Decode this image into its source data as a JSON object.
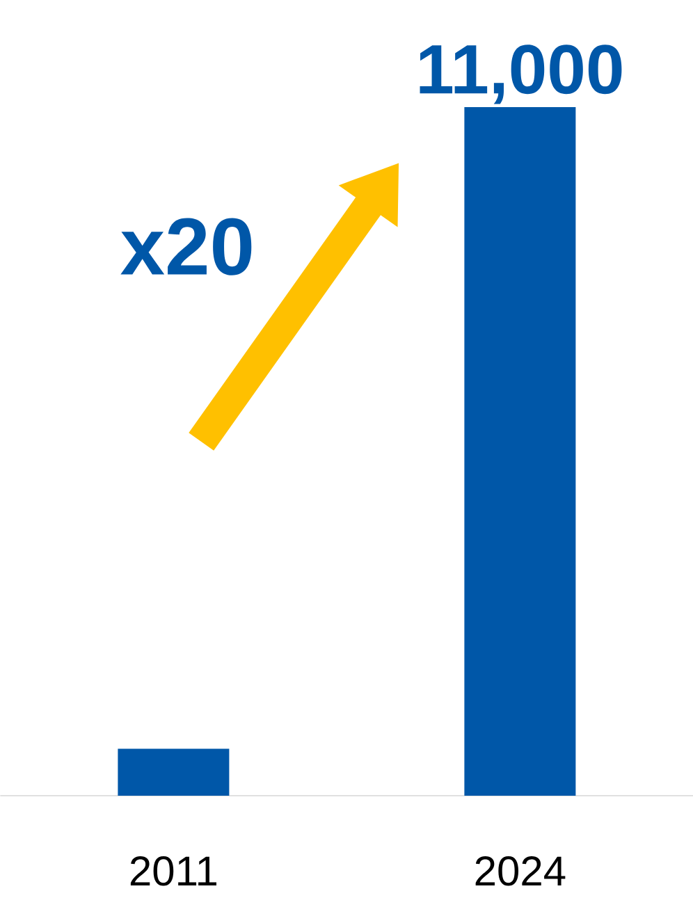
{
  "chart_data": {
    "type": "bar",
    "categories": [
      "2011",
      "2024"
    ],
    "values": [
      750,
      11000
    ],
    "value_labels": [
      null,
      "11,000"
    ],
    "color": "#0057a8",
    "annotations": [
      "x20"
    ]
  }
}
